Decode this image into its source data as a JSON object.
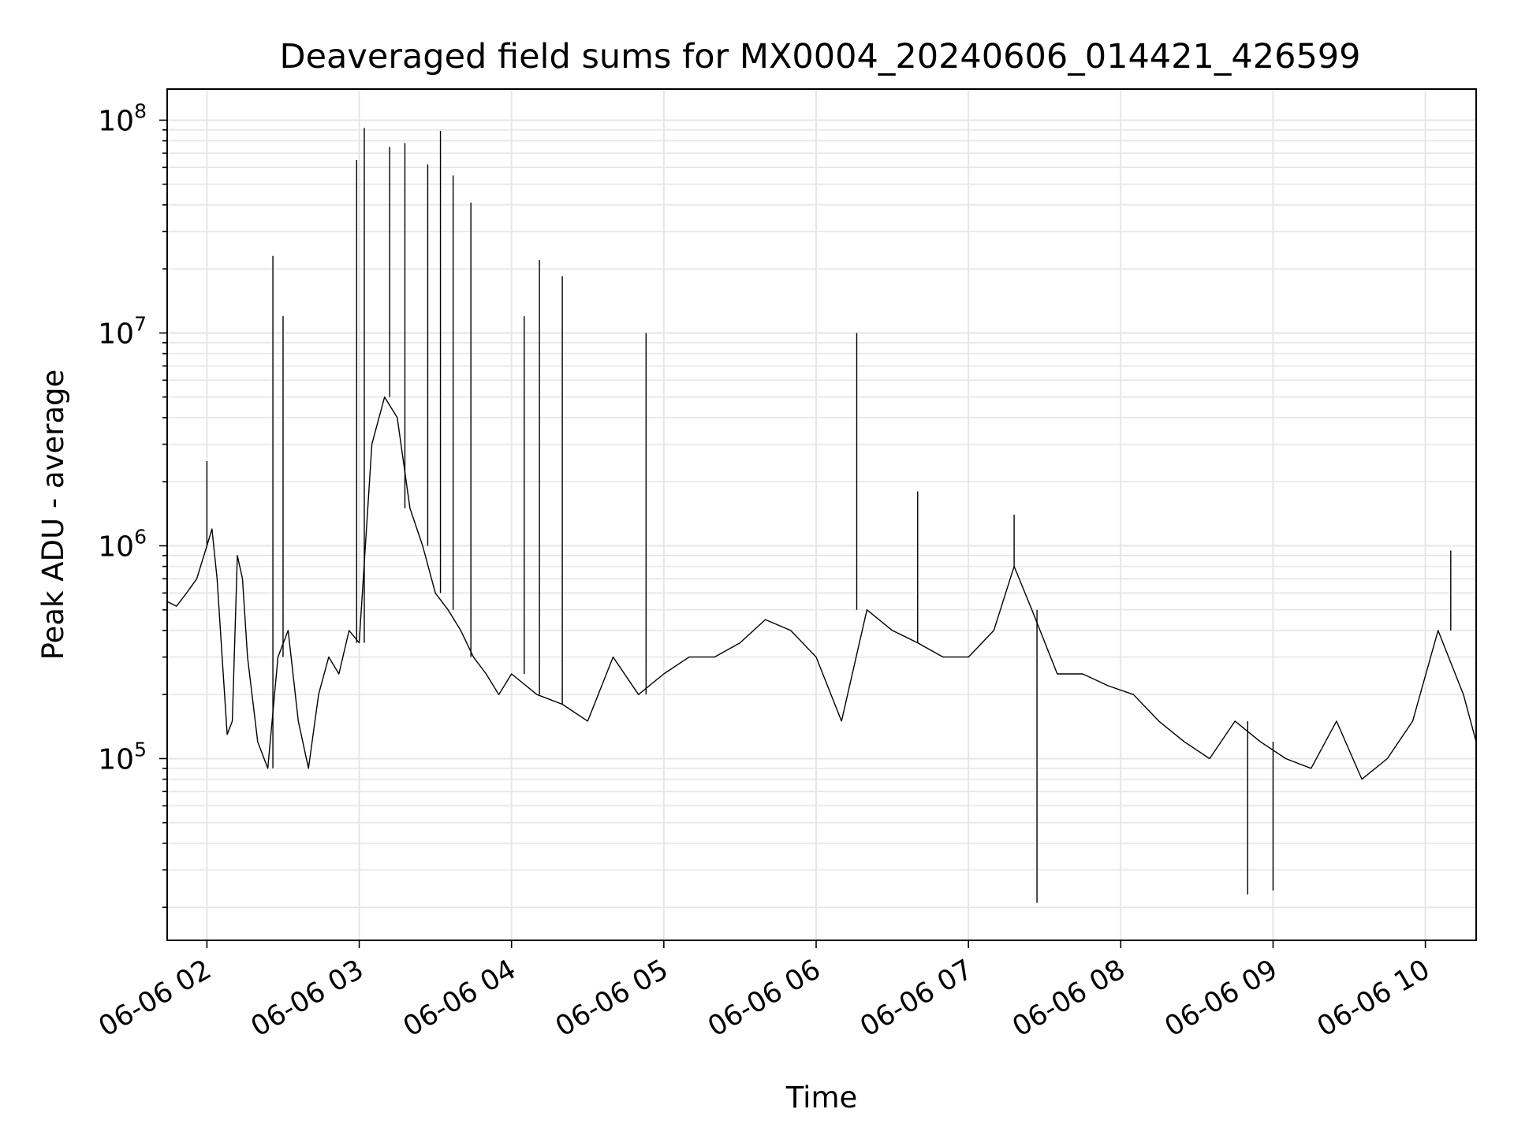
{
  "chart_data": {
    "type": "line",
    "title": "Deaveraged field sums for MX0004_20240606_014421_426599",
    "xlabel": "Time",
    "ylabel": "Peak ADU - average",
    "yscale": "log",
    "ylim": [
      14000,
      140000000
    ],
    "xlim": [
      "2024-06-06 01:44:21",
      "2024-06-06 10:20:00"
    ],
    "grid": true,
    "legend": "none",
    "line_color": "#000000",
    "grid_color": "#e6e6e6",
    "x_ticks": [
      "2024-06-06 02:00",
      "2024-06-06 03:00",
      "2024-06-06 04:00",
      "2024-06-06 05:00",
      "2024-06-06 06:00",
      "2024-06-06 07:00",
      "2024-06-06 08:00",
      "2024-06-06 09:00",
      "2024-06-06 10:00"
    ],
    "x_tick_labels": [
      "06-06 02",
      "06-06 03",
      "06-06 04",
      "06-06 05",
      "06-06 06",
      "06-06 07",
      "06-06 08",
      "06-06 09",
      "06-06 10"
    ],
    "y_ticks": [
      100000,
      1000000,
      10000000,
      100000000
    ],
    "y_tick_labels": [
      {
        "base": "10",
        "exp": "5"
      },
      {
        "base": "10",
        "exp": "6"
      },
      {
        "base": "10",
        "exp": "7"
      },
      {
        "base": "10",
        "exp": "8"
      }
    ],
    "series": [
      {
        "x": [
          "2024-06-06 01:44",
          "2024-06-06 01:48",
          "2024-06-06 01:52",
          "2024-06-06 01:56",
          "2024-06-06 02:00",
          "2024-06-06 02:02",
          "2024-06-06 02:04",
          "2024-06-06 02:06",
          "2024-06-06 02:08",
          "2024-06-06 02:10",
          "2024-06-06 02:12",
          "2024-06-06 02:14",
          "2024-06-06 02:16",
          "2024-06-06 02:20",
          "2024-06-06 02:24",
          "2024-06-06 02:28",
          "2024-06-06 02:32",
          "2024-06-06 02:36",
          "2024-06-06 02:40",
          "2024-06-06 02:44",
          "2024-06-06 02:48",
          "2024-06-06 02:52",
          "2024-06-06 02:56",
          "2024-06-06 03:00",
          "2024-06-06 03:05",
          "2024-06-06 03:10",
          "2024-06-06 03:15",
          "2024-06-06 03:20",
          "2024-06-06 03:25",
          "2024-06-06 03:30",
          "2024-06-06 03:35",
          "2024-06-06 03:40",
          "2024-06-06 03:45",
          "2024-06-06 03:50",
          "2024-06-06 03:55",
          "2024-06-06 04:00",
          "2024-06-06 04:10",
          "2024-06-06 04:20",
          "2024-06-06 04:30",
          "2024-06-06 04:40",
          "2024-06-06 04:50",
          "2024-06-06 05:00",
          "2024-06-06 05:10",
          "2024-06-06 05:20",
          "2024-06-06 05:30",
          "2024-06-06 05:40",
          "2024-06-06 05:50",
          "2024-06-06 06:00",
          "2024-06-06 06:10",
          "2024-06-06 06:20",
          "2024-06-06 06:30",
          "2024-06-06 06:40",
          "2024-06-06 06:50",
          "2024-06-06 07:00",
          "2024-06-06 07:10",
          "2024-06-06 07:18",
          "2024-06-06 07:25",
          "2024-06-06 07:35",
          "2024-06-06 07:45",
          "2024-06-06 07:55",
          "2024-06-06 08:05",
          "2024-06-06 08:15",
          "2024-06-06 08:25",
          "2024-06-06 08:35",
          "2024-06-06 08:45",
          "2024-06-06 08:55",
          "2024-06-06 09:05",
          "2024-06-06 09:15",
          "2024-06-06 09:25",
          "2024-06-06 09:35",
          "2024-06-06 09:45",
          "2024-06-06 09:55",
          "2024-06-06 10:05",
          "2024-06-06 10:15",
          "2024-06-06 10:20"
        ],
        "y": [
          550000,
          520000,
          600000,
          700000,
          1000000,
          1200000,
          700000,
          300000,
          130000,
          150000,
          900000,
          700000,
          300000,
          120000,
          90000,
          300000,
          400000,
          150000,
          90000,
          200000,
          300000,
          250000,
          400000,
          350000,
          3000000,
          5000000,
          4000000,
          1500000,
          1000000,
          600000,
          500000,
          400000,
          300000,
          250000,
          200000,
          250000,
          200000,
          180000,
          150000,
          300000,
          200000,
          250000,
          300000,
          300000,
          350000,
          450000,
          400000,
          300000,
          150000,
          500000,
          400000,
          350000,
          300000,
          300000,
          400000,
          800000,
          500000,
          250000,
          250000,
          220000,
          200000,
          150000,
          120000,
          100000,
          150000,
          120000,
          100000,
          90000,
          150000,
          80000,
          100000,
          150000,
          400000,
          200000,
          120000
        ]
      }
    ],
    "spikes": [
      {
        "x": "2024-06-06 02:00",
        "y": 2500000
      },
      {
        "x": "2024-06-06 02:26",
        "y": 23000000
      },
      {
        "x": "2024-06-06 02:30",
        "y": 12000000
      },
      {
        "x": "2024-06-06 02:59",
        "y": 65000000
      },
      {
        "x": "2024-06-06 03:02",
        "y": 92000000
      },
      {
        "x": "2024-06-06 03:12",
        "y": 75000000
      },
      {
        "x": "2024-06-06 03:18",
        "y": 78000000
      },
      {
        "x": "2024-06-06 03:27",
        "y": 62000000
      },
      {
        "x": "2024-06-06 03:32",
        "y": 89000000
      },
      {
        "x": "2024-06-06 03:37",
        "y": 55000000
      },
      {
        "x": "2024-06-06 03:44",
        "y": 41000000
      },
      {
        "x": "2024-06-06 04:05",
        "y": 12000000
      },
      {
        "x": "2024-06-06 04:11",
        "y": 22000000
      },
      {
        "x": "2024-06-06 04:20",
        "y": 18500000
      },
      {
        "x": "2024-06-06 04:53",
        "y": 10000000
      },
      {
        "x": "2024-06-06 06:16",
        "y": 10000000
      },
      {
        "x": "2024-06-06 06:40",
        "y": 1800000
      },
      {
        "x": "2024-06-06 07:18",
        "y": 1400000
      },
      {
        "x": "2024-06-06 07:27",
        "y": 21000
      },
      {
        "x": "2024-06-06 08:50",
        "y": 23000
      },
      {
        "x": "2024-06-06 09:00",
        "y": 24000
      },
      {
        "x": "2024-06-06 10:10",
        "y": 950000
      }
    ]
  }
}
